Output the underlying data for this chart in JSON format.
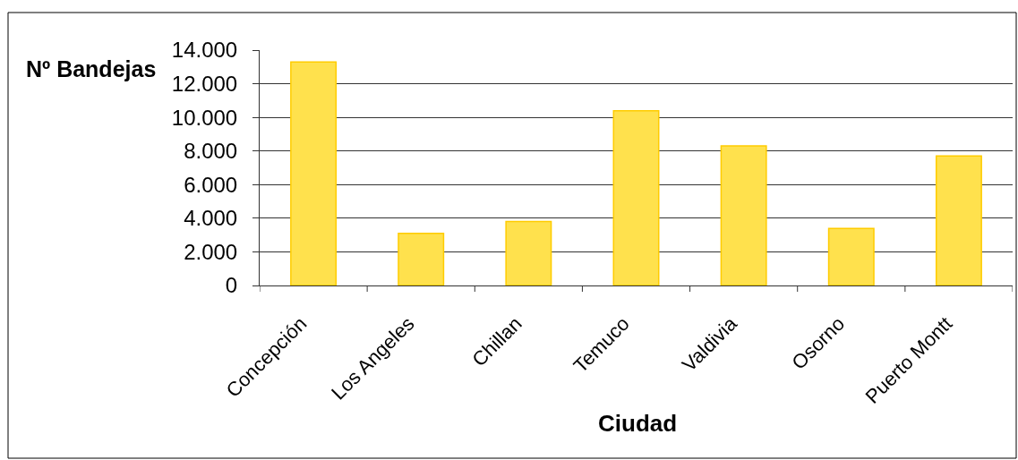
{
  "chart_data": {
    "type": "bar",
    "xlabel": "Ciudad",
    "ylabel": "Nº Bandejas",
    "categories": [
      "Concepción",
      "Los Angeles",
      "Chillan",
      "Temuco",
      "Valdivia",
      "Osorno",
      "Puerto Montt"
    ],
    "values": [
      13300,
      3100,
      3800,
      10400,
      8300,
      3400,
      7700
    ],
    "color": "#ffe14d",
    "ylim": [
      0,
      14000
    ],
    "yticks": [
      0,
      {
        "value": 2000,
        "label": "2.000"
      },
      {
        "value": 4000,
        "label": "4.000"
      },
      {
        "value": 6000,
        "label": "6.000"
      },
      {
        "value": 8000,
        "label": "8.000"
      },
      {
        "value": 10000,
        "label": "10.000"
      },
      {
        "value": 12000,
        "label": "12.000"
      },
      {
        "value": 14000,
        "label": "14.000"
      }
    ],
    "grid": "y"
  }
}
